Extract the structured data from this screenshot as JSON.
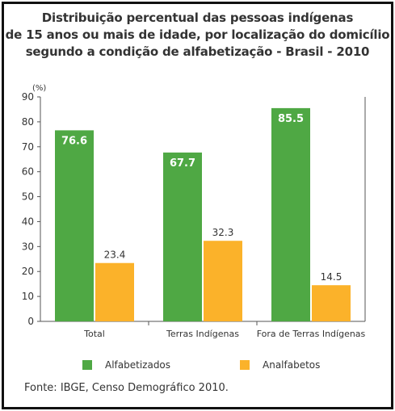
{
  "chart_data": {
    "type": "bar",
    "title_lines": [
      "Distribuição percentual das pessoas indígenas",
      "de 15 anos ou mais de idade, por localização do domicílio",
      "segundo a condição de alfabetização - Brasil - 2010"
    ],
    "ylabel": "(%)",
    "ylim": [
      0,
      90
    ],
    "yticks": [
      0,
      10,
      20,
      30,
      40,
      50,
      60,
      70,
      80,
      90
    ],
    "grid": false,
    "categories": [
      "Total",
      "Terras Indígenas",
      "Fora de Terras Indígenas"
    ],
    "series": [
      {
        "name": "Alfabetizados",
        "color": "#4fa844",
        "values": [
          76.6,
          67.7,
          85.5
        ],
        "labels": [
          "76.6",
          "67.7",
          "85.5"
        ]
      },
      {
        "name": "Analfabetos",
        "color": "#fbb22a",
        "values": [
          23.4,
          32.3,
          14.5
        ],
        "labels": [
          "23.4",
          "32.3",
          "14.5"
        ]
      }
    ],
    "legend_position": "bottom",
    "source": "Fonte: IBGE, Censo Demográfico 2010."
  }
}
